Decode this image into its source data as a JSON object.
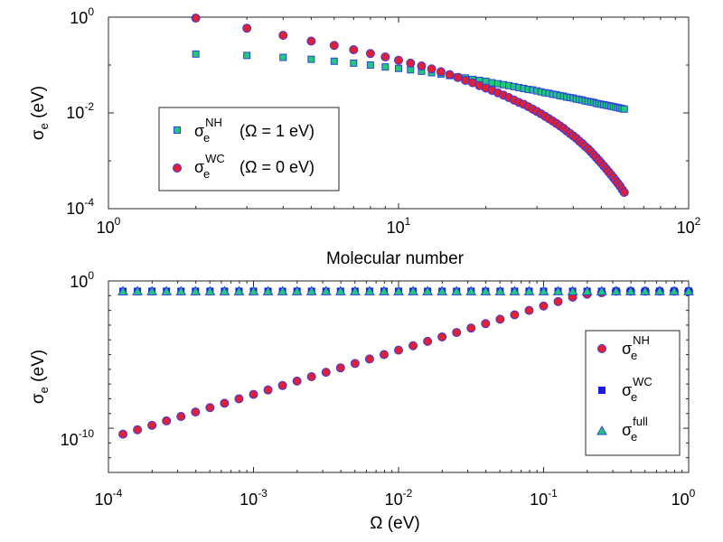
{
  "chart_data": [
    {
      "type": "scatter",
      "id": "top",
      "xscale": "log",
      "yscale": "log",
      "xlim": [
        1,
        100
      ],
      "ylim": [
        0.0001,
        1
      ],
      "xlabel": "Molecular number",
      "ylabel": {
        "symbol": "σ",
        "sub": "e",
        "unit": " (eV)"
      },
      "xticks": [
        {
          "base": "10",
          "exp": "0",
          "v": 1
        },
        {
          "base": "10",
          "exp": "1",
          "v": 10
        },
        {
          "base": "10",
          "exp": "2",
          "v": 100
        }
      ],
      "yticks": [
        {
          "base": "10",
          "exp": "-4",
          "v": 0.0001
        },
        {
          "base": "10",
          "exp": "-2",
          "v": 0.01
        },
        {
          "base": "10",
          "exp": "0",
          "v": 1
        }
      ],
      "legend_position": "lower-left",
      "series": [
        {
          "key": "nh",
          "marker": "square",
          "fill": "#21c97a",
          "stroke": "#2b44d6",
          "legend": {
            "symbol": "σ",
            "sub": "e",
            "sup": "NH",
            "note": "(Ω = 1 eV)"
          },
          "n": [
            2,
            3,
            4,
            5,
            6,
            7,
            8,
            9,
            10,
            11,
            12,
            13,
            14,
            15,
            16,
            17,
            18,
            19,
            20,
            21,
            22,
            23,
            24,
            25,
            26,
            27,
            28,
            29,
            30,
            31,
            32,
            33,
            34,
            35,
            36,
            37,
            38,
            39,
            40,
            41,
            42,
            43,
            44,
            45,
            46,
            47,
            48,
            49,
            50,
            51,
            52,
            53,
            54,
            55,
            56,
            57,
            58,
            59,
            60
          ],
          "y_log10": [
            -0.77,
            -0.8,
            -0.84,
            -0.88,
            -0.92,
            -0.96,
            -1.0,
            -1.04,
            -1.07,
            -1.1,
            -1.13,
            -1.16,
            -1.19,
            -1.22,
            -1.25,
            -1.27,
            -1.3,
            -1.32,
            -1.34,
            -1.37,
            -1.39,
            -1.41,
            -1.43,
            -1.45,
            -1.47,
            -1.49,
            -1.51,
            -1.52,
            -1.54,
            -1.56,
            -1.58,
            -1.59,
            -1.61,
            -1.62,
            -1.64,
            -1.65,
            -1.67,
            -1.68,
            -1.69,
            -1.71,
            -1.72,
            -1.73,
            -1.75,
            -1.76,
            -1.77,
            -1.78,
            -1.8,
            -1.81,
            -1.82,
            -1.83,
            -1.84,
            -1.85,
            -1.86,
            -1.87,
            -1.88,
            -1.89,
            -1.9,
            -1.91,
            -1.92
          ]
        },
        {
          "key": "wc",
          "marker": "circle",
          "fill": "#e02036",
          "stroke": "#3a3ad8",
          "legend": {
            "symbol": "σ",
            "sub": "e",
            "sup": "WC",
            "note": "(Ω = 0 eV)"
          },
          "n": [
            2,
            3,
            4,
            5,
            6,
            7,
            8,
            9,
            10,
            11,
            12,
            13,
            14,
            15,
            16,
            17,
            18,
            19,
            20,
            21,
            22,
            23,
            24,
            25,
            26,
            27,
            28,
            29,
            30,
            31,
            32,
            33,
            34,
            35,
            36,
            37,
            38,
            39,
            40,
            41,
            42,
            43,
            44,
            45,
            46,
            47,
            48,
            49,
            50,
            51,
            52,
            53,
            54,
            55,
            56,
            57,
            58,
            59,
            60
          ],
          "y_log10": [
            -0.02,
            -0.23,
            -0.38,
            -0.5,
            -0.59,
            -0.68,
            -0.76,
            -0.83,
            -0.9,
            -0.96,
            -1.02,
            -1.08,
            -1.14,
            -1.2,
            -1.26,
            -1.32,
            -1.37,
            -1.43,
            -1.48,
            -1.53,
            -1.58,
            -1.63,
            -1.68,
            -1.73,
            -1.78,
            -1.82,
            -1.87,
            -1.92,
            -1.97,
            -2.02,
            -2.07,
            -2.12,
            -2.17,
            -2.22,
            -2.27,
            -2.32,
            -2.38,
            -2.43,
            -2.48,
            -2.53,
            -2.59,
            -2.64,
            -2.7,
            -2.75,
            -2.81,
            -2.87,
            -2.93,
            -2.99,
            -3.05,
            -3.11,
            -3.17,
            -3.23,
            -3.29,
            -3.35,
            -3.41,
            -3.47,
            -3.53,
            -3.6,
            -3.66
          ]
        }
      ]
    },
    {
      "type": "scatter",
      "id": "bottom",
      "xscale": "log",
      "yscale": "log",
      "xlim": [
        0.0001,
        1
      ],
      "ylim": [
        1e-13,
        1
      ],
      "xlabel": {
        "symbol": "Ω",
        "unit": " (eV)"
      },
      "ylabel": {
        "symbol": "σ",
        "sub": "e",
        "unit": " (eV)"
      },
      "xticks": [
        {
          "base": "10",
          "exp": "-4",
          "v": 0.0001
        },
        {
          "base": "10",
          "exp": "-3",
          "v": 0.001
        },
        {
          "base": "10",
          "exp": "-2",
          "v": 0.01
        },
        {
          "base": "10",
          "exp": "-1",
          "v": 0.1
        },
        {
          "base": "10",
          "exp": "0",
          "v": 1
        }
      ],
      "yticks": [
        {
          "base": "10",
          "exp": "-10",
          "v": 1e-10
        },
        {
          "base": "10",
          "exp": "0",
          "v": 1
        }
      ],
      "legend_position": "lower-right",
      "x_log10": [
        -3.9,
        -3.8,
        -3.7,
        -3.6,
        -3.5,
        -3.4,
        -3.3,
        -3.2,
        -3.1,
        -3.0,
        -2.9,
        -2.8,
        -2.7,
        -2.6,
        -2.5,
        -2.4,
        -2.3,
        -2.2,
        -2.1,
        -2.0,
        -1.9,
        -1.8,
        -1.7,
        -1.6,
        -1.5,
        -1.4,
        -1.3,
        -1.2,
        -1.1,
        -1.0,
        -0.9,
        -0.8,
        -0.7,
        -0.6,
        -0.5,
        -0.4,
        -0.3,
        -0.2,
        -0.1,
        0.0
      ],
      "series": [
        {
          "key": "nh",
          "marker": "circle",
          "fill": "#e02036",
          "stroke": "#3a3ad8",
          "legend": {
            "symbol": "σ",
            "sub": "e",
            "sup": "NH"
          },
          "y_log10": [
            -10.4,
            -10.1,
            -9.8,
            -9.5,
            -9.2,
            -8.9,
            -8.6,
            -8.3,
            -8.0,
            -7.7,
            -7.4,
            -7.1,
            -6.8,
            -6.5,
            -6.2,
            -5.9,
            -5.6,
            -5.3,
            -5.0,
            -4.7,
            -4.4,
            -4.1,
            -3.8,
            -3.5,
            -3.2,
            -2.9,
            -2.6,
            -2.3,
            -2.0,
            -1.7,
            -1.4,
            -1.1,
            -0.9,
            -0.8,
            -0.7,
            -0.7,
            -0.7,
            -0.7,
            -0.7,
            -0.7
          ]
        },
        {
          "key": "wc",
          "marker": "square",
          "fill": "#1a1aee",
          "stroke": "#1a1aee",
          "legend": {
            "symbol": "σ",
            "sub": "e",
            "sup": "WC"
          },
          "y_log10": [
            -0.7,
            -0.7,
            -0.7,
            -0.7,
            -0.7,
            -0.7,
            -0.7,
            -0.7,
            -0.7,
            -0.7,
            -0.7,
            -0.7,
            -0.7,
            -0.7,
            -0.7,
            -0.7,
            -0.7,
            -0.7,
            -0.7,
            -0.7,
            -0.7,
            -0.7,
            -0.7,
            -0.7,
            -0.7,
            -0.7,
            -0.7,
            -0.7,
            -0.7,
            -0.7,
            -0.7,
            -0.7,
            -0.7,
            -0.7,
            -0.7,
            -0.7,
            -0.7,
            -0.7,
            -0.7,
            -0.7
          ]
        },
        {
          "key": "full",
          "marker": "triangle",
          "fill": "#21c97a",
          "stroke": "#2b44d6",
          "legend": {
            "symbol": "σ",
            "sub": "e",
            "sup": "full"
          },
          "y_log10": [
            -0.7,
            -0.7,
            -0.7,
            -0.7,
            -0.7,
            -0.7,
            -0.7,
            -0.7,
            -0.7,
            -0.7,
            -0.7,
            -0.7,
            -0.7,
            -0.7,
            -0.7,
            -0.7,
            -0.7,
            -0.7,
            -0.7,
            -0.7,
            -0.7,
            -0.7,
            -0.7,
            -0.7,
            -0.7,
            -0.7,
            -0.7,
            -0.7,
            -0.7,
            -0.7,
            -0.7,
            -0.7,
            -0.7,
            -0.7,
            -0.7,
            -0.7,
            -0.7,
            -0.7,
            -0.7,
            -0.7
          ]
        }
      ]
    }
  ]
}
